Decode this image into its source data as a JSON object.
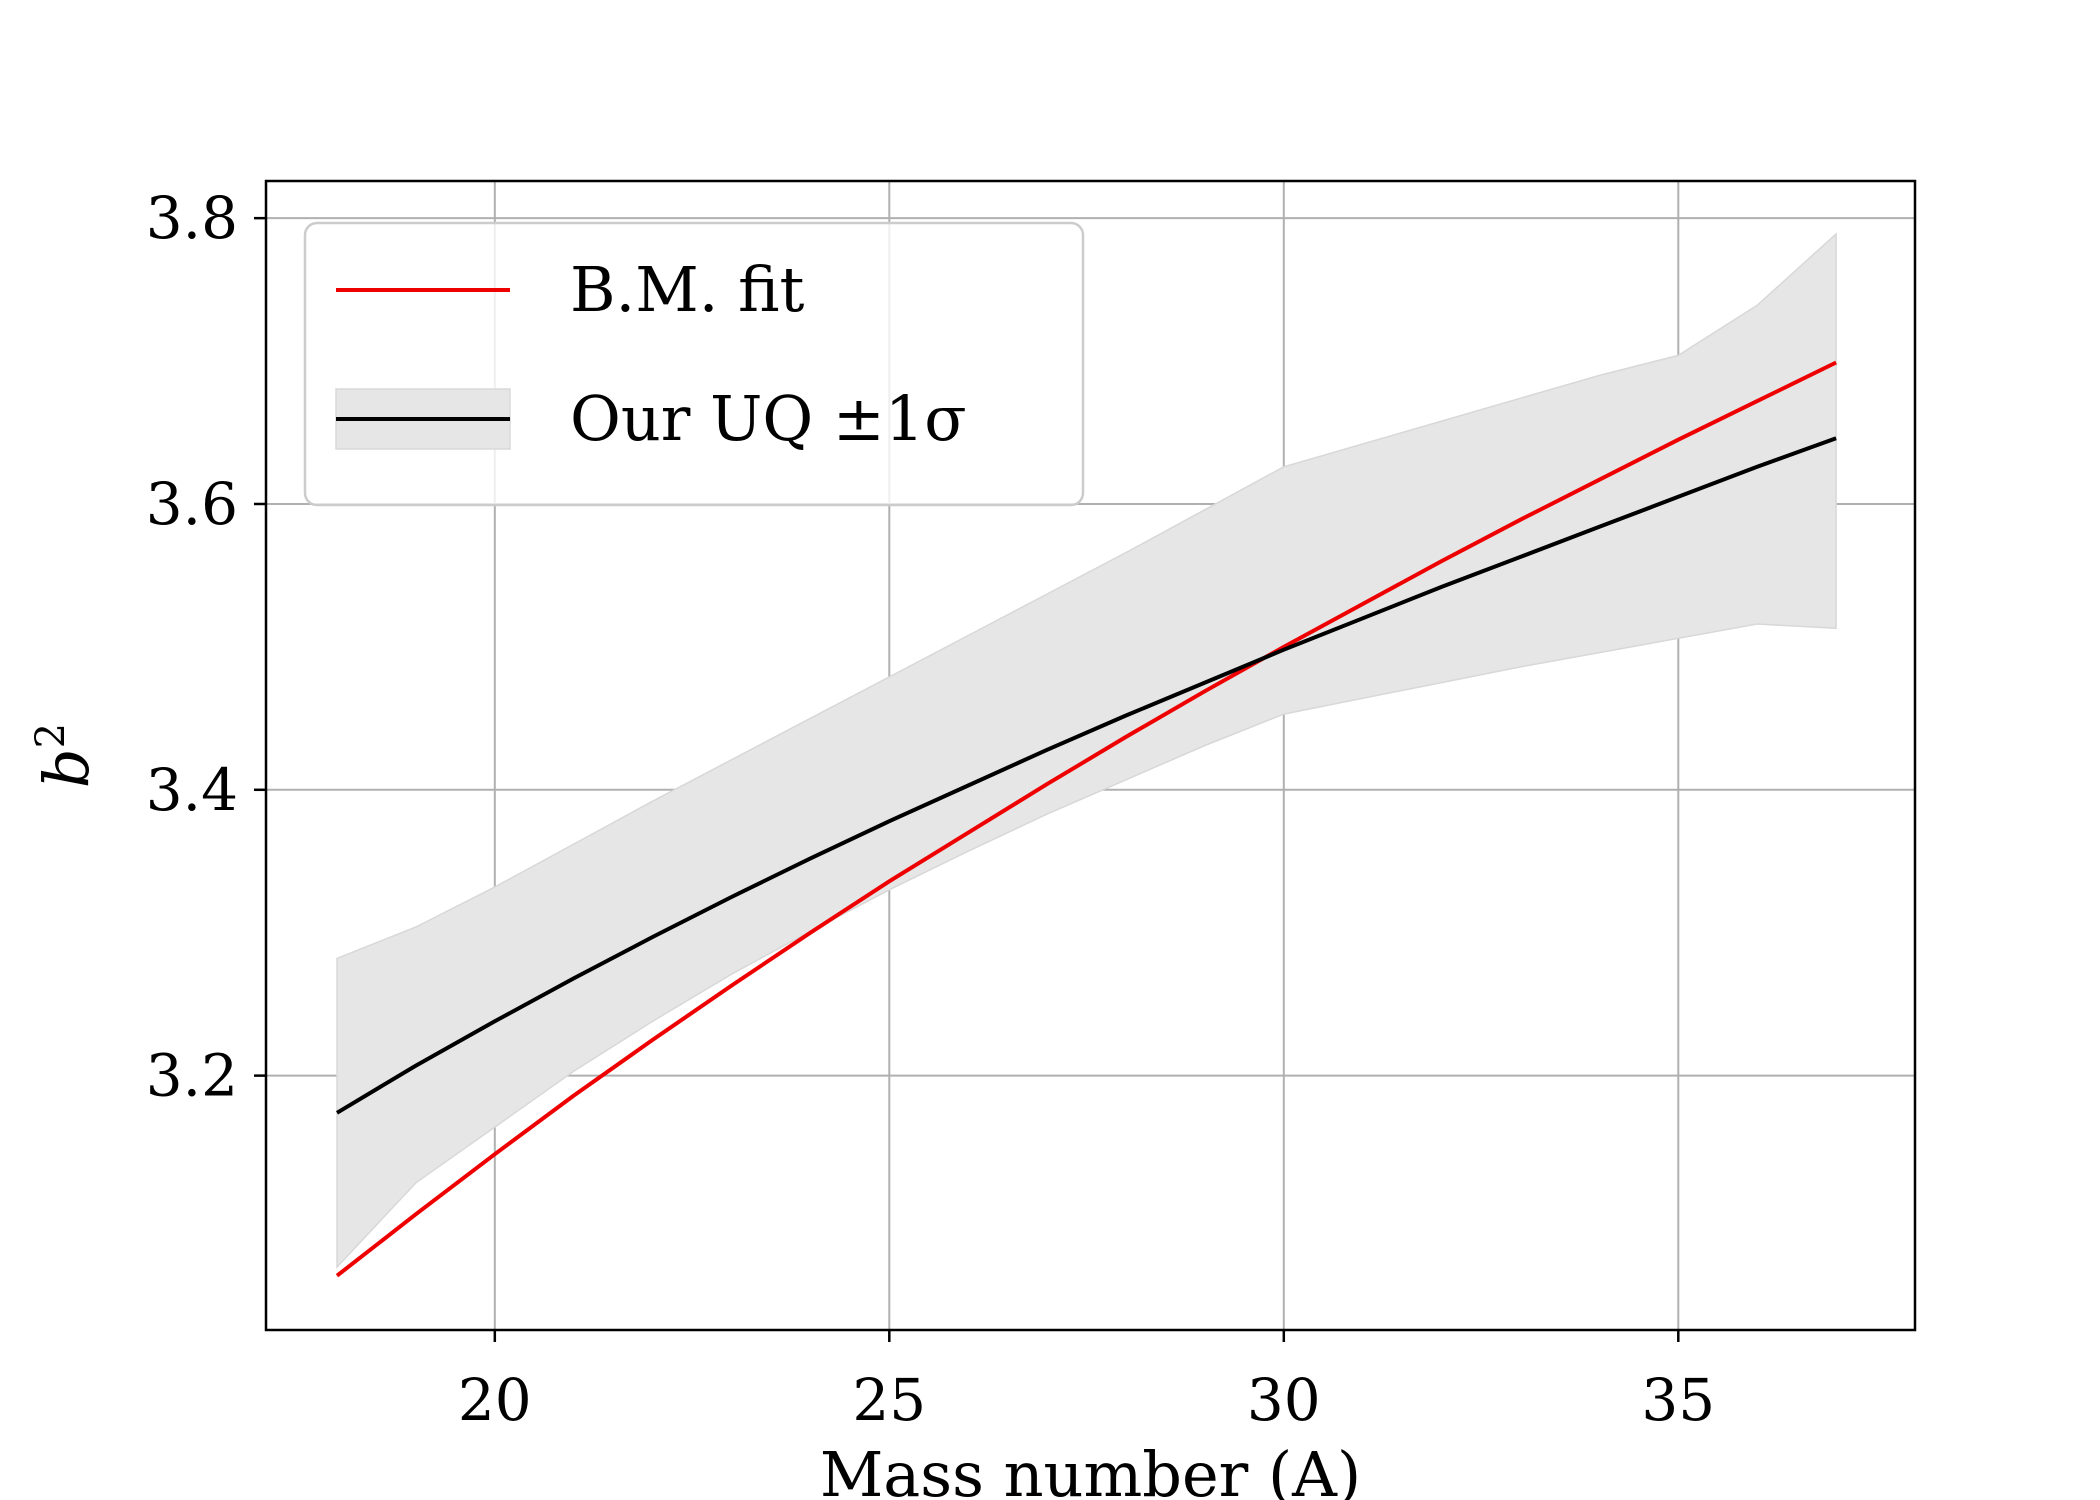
{
  "chart_data": {
    "type": "line",
    "xlabel": "Mass number (A)",
    "ylabel": "b",
    "ylabel_superscript": "2",
    "xlim": [
      17.1,
      38.0
    ],
    "ylim": [
      3.022,
      3.826
    ],
    "xticks": [
      20,
      25,
      30,
      35
    ],
    "xtick_labels": [
      "20",
      "25",
      "30",
      "35"
    ],
    "yticks": [
      3.2,
      3.4,
      3.6,
      3.8
    ],
    "ytick_labels": [
      "3.2",
      "3.4",
      "3.6",
      "3.8"
    ],
    "grid": true,
    "legend_position": "top-left",
    "legend": [
      {
        "label": "B.M. fit",
        "color": "#ee0000",
        "kind": "line"
      },
      {
        "label": "Our UQ ±1σ",
        "color": "#000000",
        "band_color": "#e6e6e6",
        "kind": "line+band"
      }
    ],
    "x": [
      18,
      19,
      20,
      21,
      22,
      23,
      24,
      25,
      26,
      27,
      28,
      29,
      30,
      31,
      32,
      33,
      34,
      35,
      36,
      37
    ],
    "series": [
      {
        "name": "B.M. fit",
        "color": "#ee0000",
        "values": [
          3.06,
          3.103,
          3.145,
          3.186,
          3.225,
          3.263,
          3.3,
          3.336,
          3.37,
          3.404,
          3.437,
          3.469,
          3.5,
          3.53,
          3.56,
          3.589,
          3.617,
          3.645,
          3.672,
          3.699
        ]
      },
      {
        "name": "Our UQ ±1σ",
        "color": "#000000",
        "values": [
          3.174,
          3.207,
          3.238,
          3.268,
          3.297,
          3.325,
          3.352,
          3.378,
          3.403,
          3.428,
          3.452,
          3.475,
          3.498,
          3.52,
          3.542,
          3.563,
          3.584,
          3.605,
          3.626,
          3.646
        ],
        "band_lower": [
          3.066,
          3.125,
          3.164,
          3.203,
          3.238,
          3.271,
          3.301,
          3.33,
          3.357,
          3.383,
          3.407,
          3.431,
          3.453,
          3.464,
          3.475,
          3.486,
          3.496,
          3.506,
          3.516,
          3.513
        ],
        "band_upper": [
          3.282,
          3.304,
          3.332,
          3.362,
          3.392,
          3.421,
          3.45,
          3.479,
          3.508,
          3.537,
          3.566,
          3.596,
          3.626,
          3.642,
          3.658,
          3.674,
          3.69,
          3.704,
          3.739,
          3.789
        ]
      }
    ]
  }
}
